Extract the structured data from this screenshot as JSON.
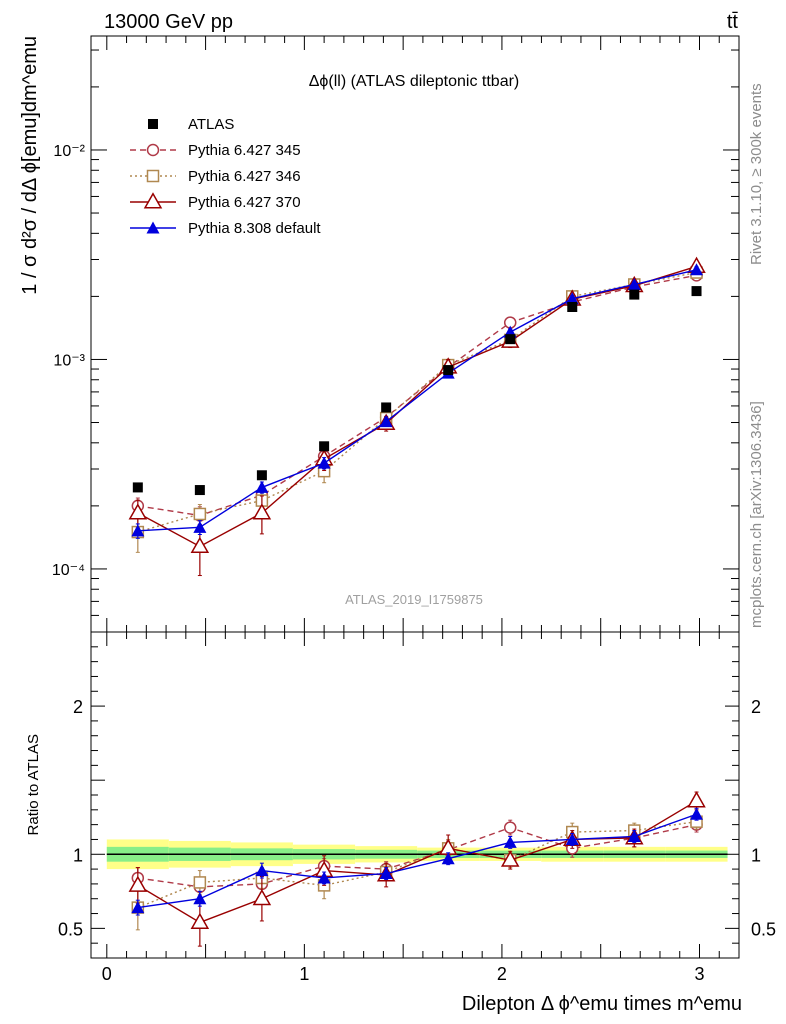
{
  "header": {
    "energy_label": "13000 GeV pp",
    "process_label": "tt̄"
  },
  "side_labels": {
    "rivet": "Rivet 3.1.10, ≥ 300k events",
    "mcplots": "mcplots.cern.ch [arXiv:1306.3436]"
  },
  "chart_data": [
    {
      "type": "scatter",
      "title": "Δϕ(ll) (ATLAS dileptonic ttbar)",
      "analysis_label": "ATLAS_2019_I1759875",
      "ylabel": "1 / σ d²σ / dΔ ϕ[emu]dm^emu",
      "ylog": true,
      "ylim": [
        5e-05,
        0.035
      ],
      "xlim": [
        -0.08,
        3.2
      ],
      "y_ticks": [
        {
          "value": 0.0001,
          "label": "10⁻⁴"
        },
        {
          "value": 0.001,
          "label": "10⁻³"
        },
        {
          "value": 0.01,
          "label": "10⁻²"
        }
      ],
      "legend_position": "top-left",
      "x": [
        0.157,
        0.471,
        0.785,
        1.1,
        1.414,
        1.728,
        2.042,
        2.356,
        2.67,
        2.985
      ],
      "series": [
        {
          "name": "ATLAS",
          "color": "#000000",
          "marker": "filled-square",
          "values": [
            0.000245,
            0.000238,
            0.00028,
            0.000385,
            0.00059,
            0.00089,
            0.00125,
            0.00178,
            0.00204,
            0.00212
          ]
        },
        {
          "name": "Pythia 6.427 345",
          "color": "#b03a48",
          "marker": "open-circle",
          "dash": "6,4",
          "values": [
            0.0002,
            0.00018,
            0.000225,
            0.000345,
            0.00053,
            0.00092,
            0.0015,
            0.00188,
            0.00222,
            0.00252
          ],
          "errors": [
            1.8e-05,
            1.8e-05,
            2e-05,
            2.5e-05,
            3e-05,
            5e-05,
            7e-05,
            9e-05,
            0.0001,
            0.00011
          ]
        },
        {
          "name": "Pythia 6.427 346",
          "color": "#b08850",
          "marker": "open-square",
          "dash": "2,3",
          "values": [
            0.00015,
            0.000183,
            0.000212,
            0.000293,
            0.000525,
            0.00094,
            0.00124,
            0.002,
            0.00228,
            0.0026
          ],
          "errors": [
            3e-05,
            2e-05,
            2e-05,
            3.5e-05,
            3e-05,
            5e-05,
            6e-05,
            9e-05,
            0.0001,
            0.00011
          ]
        },
        {
          "name": "Pythia 6.427 370",
          "color": "#990000",
          "marker": "open-triangle",
          "dash": "",
          "values": [
            0.000185,
            0.000128,
            0.000185,
            0.000335,
            0.000495,
            0.00092,
            0.00122,
            0.00194,
            0.00225,
            0.00278
          ],
          "errors": [
            2.8e-05,
            3.5e-05,
            3.8e-05,
            4e-05,
            4e-05,
            8e-05,
            8e-05,
            0.0001,
            0.00012,
            0.00013
          ]
        },
        {
          "name": "Pythia 8.308 default",
          "color": "#0000dd",
          "marker": "filled-triangle",
          "dash": "",
          "values": [
            0.000152,
            0.000158,
            0.000245,
            0.00032,
            0.000505,
            0.00086,
            0.00135,
            0.00195,
            0.00228,
            0.00268
          ],
          "errors": [
            1.2e-05,
            1.2e-05,
            1.5e-05,
            2e-05,
            2.5e-05,
            4e-05,
            5e-05,
            7e-05,
            8e-05,
            9e-05
          ]
        }
      ]
    },
    {
      "type": "scatter",
      "ylabel": "Ratio to ATLAS",
      "xlabel": "Dilepton Δ ϕ^emu times m^emu",
      "ylim": [
        0.3,
        2.5
      ],
      "xlim": [
        -0.08,
        3.2
      ],
      "x_ticks": [
        0,
        1,
        2,
        3
      ],
      "y_ticks": [
        0.5,
        1,
        2
      ],
      "reference_line": 1,
      "bands": {
        "x_edges": [
          0.0,
          0.314,
          0.628,
          0.942,
          1.257,
          1.571,
          1.885,
          2.199,
          2.513,
          2.827,
          3.142
        ],
        "yellow_half_width": [
          0.1,
          0.09,
          0.08,
          0.065,
          0.055,
          0.045,
          0.045,
          0.05,
          0.05,
          0.05
        ],
        "green_half_width": [
          0.05,
          0.045,
          0.04,
          0.035,
          0.03,
          0.025,
          0.025,
          0.025,
          0.025,
          0.025
        ],
        "yellow_color": "#ffff88",
        "green_color": "#88ee88"
      },
      "x": [
        0.157,
        0.471,
        0.785,
        1.1,
        1.414,
        1.728,
        2.042,
        2.356,
        2.67,
        2.985
      ],
      "series": [
        {
          "name": "Pythia 6.427 345",
          "color": "#b03a48",
          "marker": "open-circle",
          "dash": "6,4",
          "values": [
            0.84,
            0.78,
            0.8,
            0.92,
            0.9,
            1.03,
            1.18,
            1.04,
            1.11,
            1.2
          ],
          "errors": [
            0.07,
            0.06,
            0.06,
            0.05,
            0.05,
            0.06,
            0.05,
            0.06,
            0.06,
            0.05
          ]
        },
        {
          "name": "Pythia 6.427 346",
          "color": "#b08850",
          "marker": "open-square",
          "dash": "2,3",
          "values": [
            0.64,
            0.81,
            0.84,
            0.79,
            0.88,
            1.04,
            0.96,
            1.15,
            1.16,
            1.22
          ],
          "errors": [
            0.15,
            0.08,
            0.07,
            0.09,
            0.05,
            0.06,
            0.05,
            0.06,
            0.05,
            0.05
          ]
        },
        {
          "name": "Pythia 6.427 370",
          "color": "#990000",
          "marker": "open-triangle",
          "dash": "",
          "values": [
            0.79,
            0.54,
            0.7,
            0.89,
            0.86,
            1.04,
            0.96,
            1.1,
            1.11,
            1.36
          ],
          "errors": [
            0.12,
            0.16,
            0.15,
            0.1,
            0.08,
            0.09,
            0.06,
            0.06,
            0.06,
            0.06
          ]
        },
        {
          "name": "Pythia 8.308 default",
          "color": "#0000dd",
          "marker": "filled-triangle",
          "dash": "",
          "values": [
            0.64,
            0.7,
            0.89,
            0.84,
            0.87,
            0.97,
            1.08,
            1.1,
            1.12,
            1.27
          ],
          "errors": [
            0.05,
            0.05,
            0.05,
            0.04,
            0.04,
            0.04,
            0.04,
            0.04,
            0.04,
            0.04
          ]
        }
      ]
    }
  ]
}
